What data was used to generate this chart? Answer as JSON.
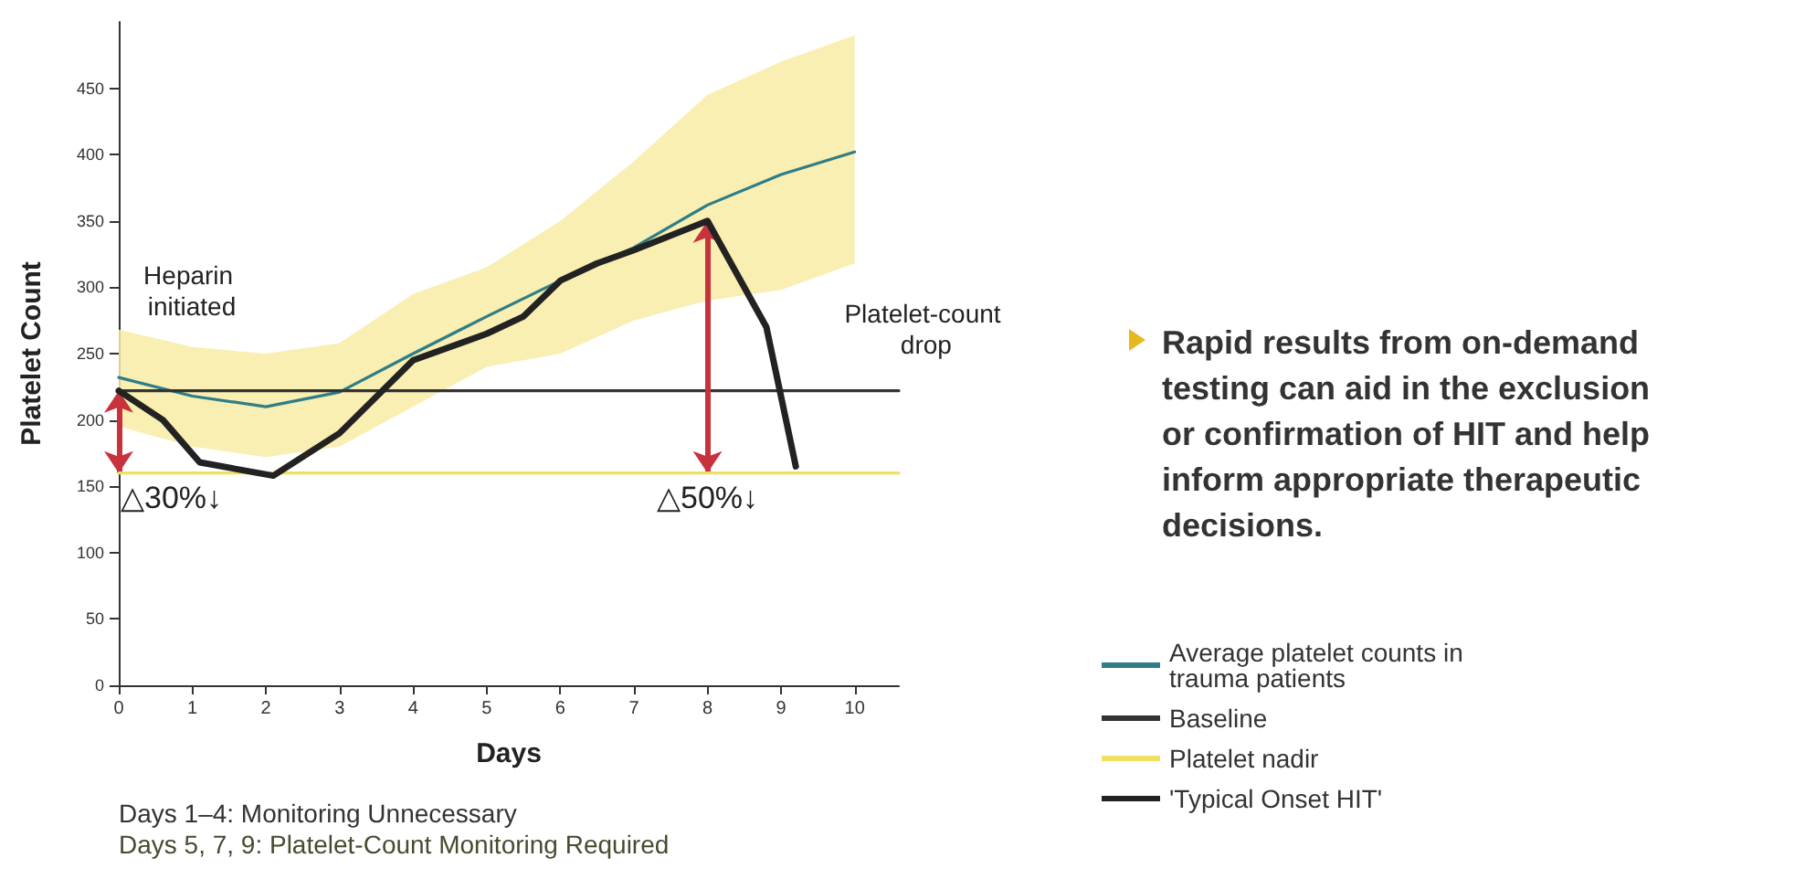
{
  "chart_data": {
    "type": "line",
    "xlabel": "Days",
    "ylabel": "Platelet Count",
    "xlim": [
      0,
      10.6
    ],
    "xticks": [
      0,
      1,
      2,
      3,
      4,
      5,
      6,
      7,
      8,
      9,
      10
    ],
    "ylim": [
      0,
      500
    ],
    "yticks": [
      0,
      50,
      100,
      150,
      200,
      250,
      300,
      350,
      400,
      450
    ],
    "grid": false,
    "legend": "right",
    "marker": "none",
    "line_style": "solid",
    "series": [
      {
        "name": "Average platelet counts in trauma patients",
        "color": "#2f7d86",
        "x": [
          0,
          1,
          2,
          3,
          4,
          5,
          6,
          7,
          8,
          9,
          10
        ],
        "values": [
          232,
          218,
          210,
          221,
          250,
          278,
          305,
          330,
          362,
          385,
          402
        ],
        "lower": [
          195,
          180,
          172,
          180,
          210,
          240,
          250,
          275,
          290,
          298,
          318
        ],
        "upper": [
          268,
          255,
          250,
          258,
          295,
          315,
          350,
          395,
          445,
          470,
          490
        ]
      },
      {
        "name": "Baseline",
        "color": "#333333",
        "x": [
          0,
          10.6
        ],
        "values": [
          222,
          222
        ]
      },
      {
        "name": "Platelet nadir",
        "color": "#f0e060",
        "x": [
          0,
          10.6
        ],
        "values": [
          160,
          160
        ]
      },
      {
        "name": "'Typical Onset HIT'",
        "color": "#222222",
        "x": [
          0,
          0.6,
          1.1,
          2.1,
          3,
          4,
          5,
          5.5,
          6,
          6.5,
          7,
          8,
          8.8,
          9.2
        ],
        "values": [
          222,
          200,
          168,
          158,
          190,
          245,
          265,
          278,
          305,
          318,
          328,
          350,
          270,
          165
        ]
      }
    ],
    "annotations": [
      "Heparin initiated",
      "Platelet-count drop",
      {
        "text": "△30%↓",
        "x": 0,
        "y": 160
      },
      {
        "text": "△50%↓",
        "x": 8,
        "y": 160
      },
      "Rapid results from on-demand testing can aid in the exclusion or confirmation of HIT and help inform appropriate therapeutic decisions.",
      "Days 1–4: Monitoring Unnecessary",
      "Days 5, 7, 9: Platelet-Count Monitoring Required"
    ]
  }
}
